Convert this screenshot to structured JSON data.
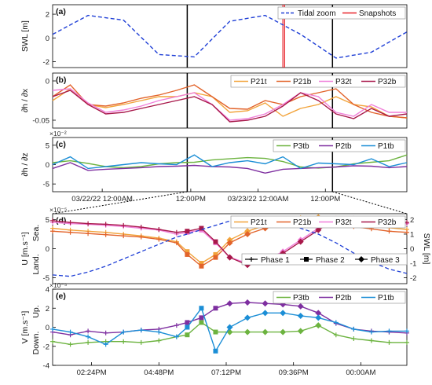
{
  "colors": {
    "tidal": "#1f3fd6",
    "snap": "#e8242b",
    "marker": "#000000",
    "P21t": "#f2a33a",
    "P21b": "#e2632a",
    "P32t": "#f07fd9",
    "P32b": "#a8184a",
    "P3tb": "#6cb33f",
    "P2tb": "#7e2fa0",
    "P1tb": "#1b8ed6"
  },
  "chart_data": [
    {
      "panel": "(a)",
      "type": "line",
      "ylabel": "SWL [m]",
      "ylim": [
        -2.5,
        2.8
      ],
      "yticks": [
        -2,
        0,
        2
      ],
      "x": [
        0,
        0.1,
        0.2,
        0.3,
        0.4,
        0.5,
        0.6,
        0.7,
        0.8,
        0.9,
        1.0
      ],
      "series": [
        {
          "name": "Tidal zoom",
          "style": "dashed",
          "values": [
            0.3,
            1.9,
            1.5,
            -1.4,
            -1.6,
            1.4,
            1.9,
            0.3,
            -1.7,
            -1.2,
            0.5
          ]
        }
      ],
      "snapshots_name": "Snapshots",
      "snapshot_x": [
        0.65,
        0.655
      ],
      "window_x": [
        0.38,
        0.79
      ]
    },
    {
      "panel": "(b)",
      "type": "line",
      "ylabel": "∂h / ∂x",
      "ylim": [
        -0.06,
        0.01
      ],
      "yticks": [
        0,
        -0.05
      ],
      "ytick_labels": [
        "0",
        "-0.05"
      ],
      "x": [
        0,
        0.05,
        0.1,
        0.15,
        0.2,
        0.25,
        0.3,
        0.35,
        0.4,
        0.45,
        0.5,
        0.55,
        0.6,
        0.65,
        0.7,
        0.75,
        0.8,
        0.85,
        0.9,
        0.95,
        1.0
      ],
      "series": [
        {
          "name": "P21t",
          "values": [
            -0.025,
            -0.01,
            -0.03,
            -0.034,
            -0.03,
            -0.025,
            -0.02,
            -0.02,
            -0.015,
            -0.02,
            -0.04,
            -0.038,
            -0.028,
            -0.045,
            -0.035,
            -0.03,
            -0.02,
            -0.03,
            -0.033,
            -0.045,
            -0.047
          ]
        },
        {
          "name": "P21b",
          "values": [
            -0.02,
            -0.005,
            -0.03,
            -0.032,
            -0.028,
            -0.022,
            -0.018,
            -0.012,
            -0.005,
            -0.02,
            -0.035,
            -0.036,
            -0.025,
            -0.03,
            -0.02,
            -0.015,
            -0.01,
            -0.03,
            -0.04,
            -0.045,
            -0.047
          ]
        },
        {
          "name": "P32t",
          "values": [
            -0.012,
            -0.01,
            -0.028,
            -0.04,
            -0.037,
            -0.032,
            -0.025,
            -0.02,
            -0.015,
            -0.03,
            -0.05,
            -0.048,
            -0.042,
            -0.03,
            -0.015,
            -0.02,
            -0.04,
            -0.045,
            -0.03,
            -0.04,
            -0.04
          ]
        },
        {
          "name": "P32b",
          "values": [
            -0.02,
            -0.012,
            -0.03,
            -0.042,
            -0.04,
            -0.035,
            -0.03,
            -0.025,
            -0.02,
            -0.03,
            -0.052,
            -0.05,
            -0.045,
            -0.032,
            -0.015,
            -0.025,
            -0.042,
            -0.048,
            -0.035,
            -0.045,
            -0.042
          ]
        }
      ]
    },
    {
      "panel": "(c)",
      "type": "line",
      "ylabel": "∂h / ∂z",
      "ylim": [
        -7,
        7
      ],
      "yticks": [
        5,
        0,
        -5
      ],
      "exponent": "×10⁻²",
      "x": [
        0,
        0.05,
        0.1,
        0.15,
        0.2,
        0.25,
        0.3,
        0.35,
        0.4,
        0.45,
        0.5,
        0.55,
        0.6,
        0.65,
        0.7,
        0.75,
        0.8,
        0.85,
        0.9,
        0.95,
        1.0
      ],
      "series": [
        {
          "name": "P3tb",
          "values": [
            0.5,
            1,
            0.3,
            -0.5,
            -0.8,
            -0.5,
            0.2,
            0.5,
            0.6,
            1.2,
            1.5,
            1.8,
            1.6,
            0.8,
            -0.6,
            -0.9,
            -0.6,
            0.2,
            0.6,
            1.0,
            2.5
          ]
        },
        {
          "name": "P2tb",
          "values": [
            -1,
            0.5,
            -1.5,
            -1.2,
            -1.0,
            -0.8,
            -0.5,
            -0.4,
            -0.2,
            -0.5,
            -0.6,
            -1.0,
            -2.2,
            -1.2,
            -1.0,
            -0.8,
            -0.6,
            -0.3,
            -0.4,
            -0.8,
            -0.5
          ]
        },
        {
          "name": "P1tb",
          "values": [
            0,
            2,
            -1,
            -0.5,
            0,
            0.5,
            0.2,
            0.0,
            2.5,
            -0.5,
            0.5,
            1.0,
            0.2,
            2.0,
            -1.0,
            0.4,
            0.2,
            0,
            1.5,
            -0.5,
            0.5
          ]
        }
      ],
      "xticks": [
        0.14,
        0.39,
        0.58,
        0.77
      ],
      "xtick_labels": [
        "03/22/22 12:00AM",
        "12:00PM",
        "03/23/22 12:00AM",
        "12:00PM"
      ]
    },
    {
      "panel": "(d)",
      "type": "line",
      "ylabel": "U [m.s⁻¹]",
      "ylim": [
        -6,
        6
      ],
      "yticks": [
        5,
        0,
        -5
      ],
      "exponent": "×10⁻⁵",
      "left_arrow_top": "Sea.",
      "left_arrow_bottom": "Land.",
      "ylabel_right": "SWL [m]",
      "y2lim": [
        -2.4,
        2.4
      ],
      "y2ticks": [
        2,
        1,
        0,
        -1,
        -2
      ],
      "x": [
        0,
        0.05,
        0.1,
        0.15,
        0.2,
        0.25,
        0.3,
        0.35,
        0.38,
        0.42,
        0.46,
        0.5,
        0.55,
        0.6,
        0.65,
        0.7,
        0.75,
        0.8,
        0.85,
        0.9,
        0.95,
        1.0
      ],
      "series": [
        {
          "name": "P21t",
          "values": [
            3.5,
            3.2,
            3.0,
            2.8,
            2.5,
            2.2,
            1.8,
            1.2,
            -0.5,
            -2.5,
            -1,
            1.5,
            3,
            4,
            4.8,
            5.2,
            5.4,
            5.0,
            4.5,
            4.0,
            3.6,
            3.3
          ]
        },
        {
          "name": "P21b",
          "values": [
            3.0,
            2.8,
            2.6,
            2.4,
            2.2,
            2.0,
            1.6,
            1.0,
            -1.0,
            -3.0,
            -1.5,
            1.0,
            2.5,
            3.5,
            4.2,
            4.6,
            4.9,
            4.3,
            3.8,
            3.4,
            3.0,
            2.8
          ]
        },
        {
          "name": "P32t",
          "values": [
            4.5,
            4.3,
            4.2,
            4.0,
            3.8,
            3.5,
            3.2,
            2.5,
            2.8,
            3.2,
            1.0,
            -1.5,
            -2.5,
            -2.0,
            -0.5,
            1.5,
            3.5,
            5.0,
            5.0,
            4.8,
            4.6,
            4.3
          ]
        },
        {
          "name": "P32b",
          "values": [
            4.8,
            4.5,
            4.3,
            4.2,
            4.0,
            3.7,
            3.3,
            2.8,
            3.0,
            3.5,
            1.2,
            -1.5,
            -2.8,
            -2.2,
            -0.8,
            1.2,
            3.2,
            5.2,
            5.2,
            5.0,
            4.8,
            4.5
          ]
        }
      ],
      "swl": [
        -1.8,
        -1.9,
        -1.6,
        -1.2,
        -0.7,
        -0.2,
        0.3,
        0.8,
        1.0,
        1.3,
        1.6,
        1.9,
        2.0,
        1.9,
        1.7,
        1.4,
        1.0,
        0.4,
        -0.3,
        -0.9,
        -1.4,
        -1.7
      ],
      "legend_phases": [
        "Phase 1",
        "Phase 2",
        "Phase 3"
      ]
    },
    {
      "panel": "(e)",
      "type": "line",
      "ylabel": "V [m.s⁻¹]",
      "ylim": [
        -4,
        4
      ],
      "yticks": [
        4,
        2,
        0,
        -2,
        -4
      ],
      "exponent": "×10⁻⁵",
      "left_arrow_top": "Up.",
      "left_arrow_bottom": "Down.",
      "x": [
        0,
        0.05,
        0.1,
        0.15,
        0.2,
        0.25,
        0.3,
        0.35,
        0.38,
        0.42,
        0.46,
        0.5,
        0.55,
        0.6,
        0.65,
        0.7,
        0.75,
        0.8,
        0.85,
        0.9,
        0.95,
        1.0
      ],
      "series": [
        {
          "name": "P3tb",
          "values": [
            -1.5,
            -1.8,
            -1.6,
            -1.5,
            -1.5,
            -1.6,
            -1.4,
            -1.0,
            -0.8,
            0.5,
            -0.5,
            -0.5,
            -0.5,
            -0.5,
            -0.5,
            -0.4,
            0.2,
            -0.8,
            -1.2,
            -1.4,
            -1.6,
            -1.6
          ]
        },
        {
          "name": "P2tb",
          "values": [
            -0.5,
            -0.8,
            -0.4,
            -0.6,
            -0.5,
            -0.3,
            -0.2,
            0.2,
            0.5,
            1.0,
            2.0,
            2.5,
            2.6,
            2.5,
            2.4,
            2.2,
            1.5,
            0.4,
            -0.2,
            -0.4,
            -0.5,
            -0.6
          ]
        },
        {
          "name": "P1tb",
          "values": [
            -0.2,
            -0.5,
            -1.0,
            -1.8,
            -0.5,
            -0.3,
            -0.5,
            -1.0,
            0.0,
            2.0,
            -2.5,
            0.0,
            1.0,
            1.5,
            1.5,
            1.2,
            1.0,
            0.5,
            -0.2,
            -0.5,
            -0.4,
            -0.4
          ]
        }
      ],
      "xticks": [
        0.11,
        0.3,
        0.49,
        0.68,
        0.87
      ],
      "xtick_labels": [
        "02:24PM",
        "04:48PM",
        "07:12PM",
        "09:36PM",
        "00:00AM"
      ]
    }
  ]
}
